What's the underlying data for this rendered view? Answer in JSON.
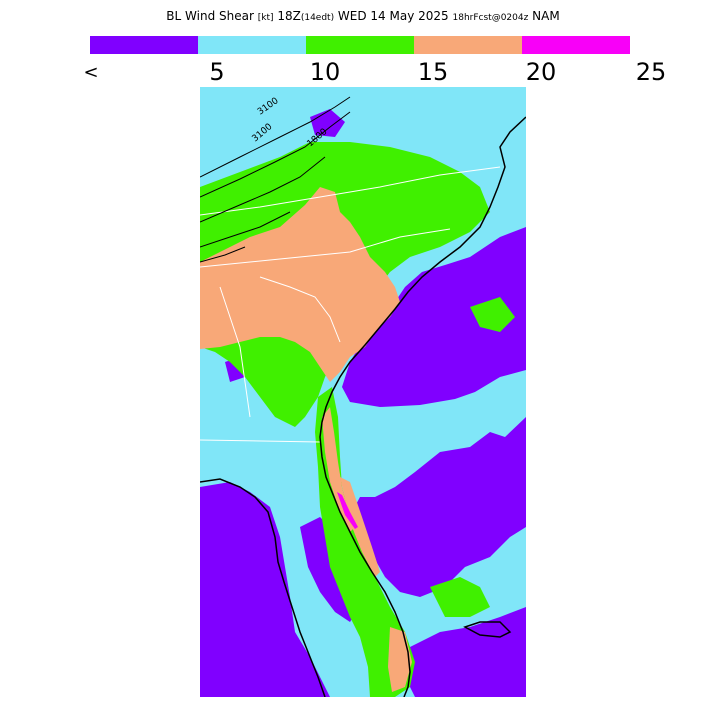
{
  "title": {
    "main": "BL Wind Shear",
    "units": "[kt]",
    "time": "18Z",
    "local": "(14edt)",
    "date": "WED 14 May 2025",
    "forecast": "18hrFcst@0204z",
    "model": "NAM"
  },
  "legend": {
    "colors": [
      "#8000ff",
      "#80e6f8",
      "#40f000",
      "#f8a878",
      "#f800f8"
    ],
    "labels": [
      "<",
      "5",
      "10",
      "15",
      "20",
      "25"
    ]
  },
  "contour_labels": [
    "3100",
    "3100",
    "1800"
  ],
  "palette": {
    "calm": "#8000ff",
    "light": "#80e6f8",
    "moderate": "#40f000",
    "strong": "#f8a878",
    "very_strong": "#f800f8",
    "coast": "#000000",
    "border": "#ffffff"
  }
}
